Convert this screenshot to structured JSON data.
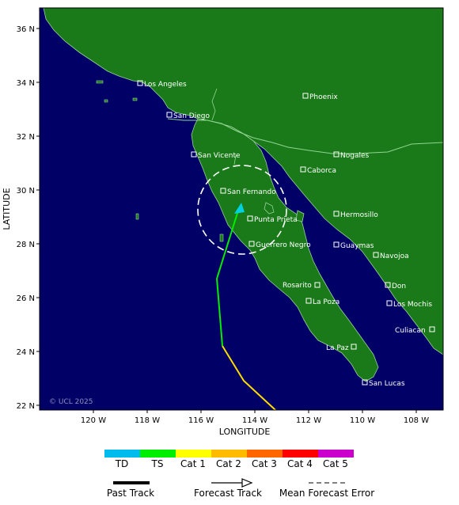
{
  "map": {
    "title": "",
    "axis_x_label": "LONGITUDE",
    "axis_y_label": "LATITUDE",
    "x_ticks": [
      "120 W",
      "118 W",
      "116 W",
      "114 W",
      "112 W",
      "110 W",
      "108 W"
    ],
    "y_ticks": [
      "36 N",
      "34 N",
      "32 N",
      "30 N",
      "28 N",
      "26 N",
      "24 N",
      "22 N"
    ],
    "copyright": "© UCL 2025",
    "colors": {
      "ocean": "#000066",
      "land": "#1a7a1a",
      "border": "#8fd68f",
      "forecast_ts": "#00ee00",
      "past_ts": "#ffdd00",
      "arrow_head": "#00d0e0",
      "error_circle": "#ffffff"
    }
  },
  "cities": [
    {
      "name": "Los Angeles"
    },
    {
      "name": "San Diego"
    },
    {
      "name": "Phoenix"
    },
    {
      "name": "San Vicente"
    },
    {
      "name": "Nogales"
    },
    {
      "name": "Caborca"
    },
    {
      "name": "San Fernando"
    },
    {
      "name": "Punta Prieta"
    },
    {
      "name": "Hermosillo"
    },
    {
      "name": "Guerrero Negro"
    },
    {
      "name": "Guaymas"
    },
    {
      "name": "Navojoa"
    },
    {
      "name": "Rosarito"
    },
    {
      "name": "Don"
    },
    {
      "name": "La Poza"
    },
    {
      "name": "Los Mochis"
    },
    {
      "name": "Culiacan"
    },
    {
      "name": "La Paz"
    },
    {
      "name": "San Lucas"
    }
  ],
  "legend": {
    "categories": [
      {
        "label": "TD",
        "color": "#00bbee"
      },
      {
        "label": "TS",
        "color": "#00ee00"
      },
      {
        "label": "Cat 1",
        "color": "#ffff00"
      },
      {
        "label": "Cat 2",
        "color": "#ffbb00"
      },
      {
        "label": "Cat 3",
        "color": "#ff6600"
      },
      {
        "label": "Cat 4",
        "color": "#ff0000"
      },
      {
        "label": "Cat 5",
        "color": "#cc00cc"
      }
    ],
    "past_track": "Past Track",
    "forecast_track": "Forecast Track",
    "mean_error": "Mean Forecast Error"
  }
}
